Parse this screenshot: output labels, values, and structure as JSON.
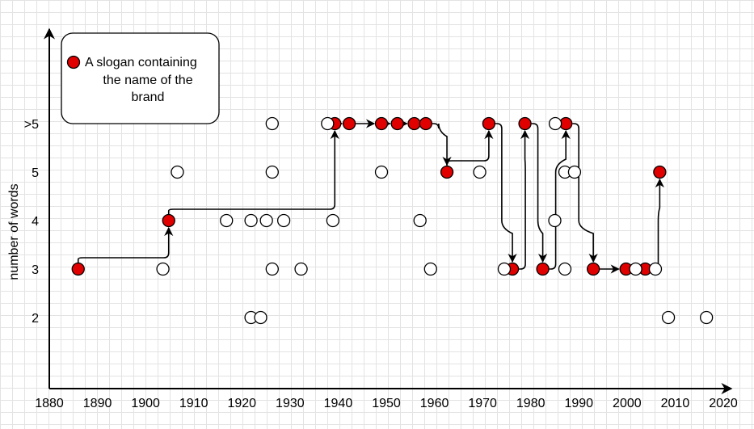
{
  "chart_data": {
    "type": "scatter",
    "ylabel": "number of words",
    "xlim": [
      1880,
      2020
    ],
    "x_ticks": [
      "1880",
      "1890",
      "1900",
      "1910",
      "1920",
      "1930",
      "1940",
      "1950",
      "1960",
      "1970",
      "1980",
      "1990",
      "2000",
      "2010",
      "2020"
    ],
    "y_categories": [
      "2",
      "3",
      "4",
      "5",
      ">5"
    ],
    "legend": {
      "lines": [
        "A slogan containing",
        "the name of the",
        "brand"
      ],
      "marker_color": "#e00000",
      "placement": "top-left"
    },
    "colors": {
      "highlight": "#e00000",
      "plain": "#ffffff",
      "outline": "#000000"
    },
    "series": [
      {
        "name": "A slogan containing the name of the brand",
        "points": [
          {
            "x": 1886,
            "y": "3"
          },
          {
            "x": 1904.8,
            "y": "4"
          },
          {
            "x": 1939.3,
            "y": ">5"
          },
          {
            "x": 1942.3,
            "y": ">5"
          },
          {
            "x": 1949,
            "y": ">5"
          },
          {
            "x": 1952.3,
            "y": ">5"
          },
          {
            "x": 1955.8,
            "y": ">5"
          },
          {
            "x": 1958.2,
            "y": ">5"
          },
          {
            "x": 1962.6,
            "y": "5"
          },
          {
            "x": 1971.3,
            "y": ">5"
          },
          {
            "x": 1976.2,
            "y": "3"
          },
          {
            "x": 1978.8,
            "y": ">5"
          },
          {
            "x": 1982.5,
            "y": "3"
          },
          {
            "x": 1987.3,
            "y": ">5"
          },
          {
            "x": 1993,
            "y": "3"
          },
          {
            "x": 1999.8,
            "y": "3"
          },
          {
            "x": 2003.8,
            "y": "3"
          },
          {
            "x": 2006.8,
            "y": "5"
          }
        ]
      },
      {
        "name": "",
        "points": [
          {
            "x": 1903.6,
            "y": "3"
          },
          {
            "x": 1906.6,
            "y": "5"
          },
          {
            "x": 1916.8,
            "y": "4"
          },
          {
            "x": 1921.9,
            "y": "4"
          },
          {
            "x": 1921.9,
            "y": "2"
          },
          {
            "x": 1923.9,
            "y": "2"
          },
          {
            "x": 1925.1,
            "y": "4"
          },
          {
            "x": 1926.3,
            "y": ">5"
          },
          {
            "x": 1926.3,
            "y": "5"
          },
          {
            "x": 1926.3,
            "y": "3"
          },
          {
            "x": 1928.7,
            "y": "4"
          },
          {
            "x": 1932.3,
            "y": "3"
          },
          {
            "x": 1937.8,
            "y": ">5"
          },
          {
            "x": 1938.9,
            "y": "4"
          },
          {
            "x": 1949,
            "y": "5"
          },
          {
            "x": 1957,
            "y": "4"
          },
          {
            "x": 1959.2,
            "y": "3"
          },
          {
            "x": 1969.4,
            "y": "5"
          },
          {
            "x": 1974.5,
            "y": "3"
          },
          {
            "x": 1985.1,
            "y": ">5"
          },
          {
            "x": 1985,
            "y": "4"
          },
          {
            "x": 1987.1,
            "y": "5"
          },
          {
            "x": 1987.1,
            "y": "3"
          },
          {
            "x": 1989.1,
            "y": "5"
          },
          {
            "x": 2001.8,
            "y": "3"
          },
          {
            "x": 2005.9,
            "y": "3"
          },
          {
            "x": 2008.6,
            "y": "2"
          },
          {
            "x": 2016.5,
            "y": "2"
          }
        ]
      }
    ],
    "connections": [
      [
        1886,
        "3",
        1904.8,
        "4"
      ],
      [
        1904.8,
        "4",
        1939.3,
        ">5"
      ],
      [
        1939.3,
        ">5",
        1942.3,
        ">5"
      ],
      [
        1942.3,
        ">5",
        1949,
        ">5"
      ],
      [
        1949,
        ">5",
        1952.3,
        ">5"
      ],
      [
        1952.3,
        ">5",
        1955.8,
        ">5"
      ],
      [
        1955.8,
        ">5",
        1958.2,
        ">5"
      ],
      [
        1958.2,
        ">5",
        1962.6,
        "5"
      ],
      [
        1962.6,
        "5",
        1971.3,
        ">5"
      ],
      [
        1971.3,
        ">5",
        1976.2,
        "3"
      ],
      [
        1976.2,
        "3",
        1978.8,
        ">5"
      ],
      [
        1978.8,
        ">5",
        1982.5,
        "3"
      ],
      [
        1982.5,
        "3",
        1987.3,
        ">5"
      ],
      [
        1987.3,
        ">5",
        1993,
        "3"
      ],
      [
        1993,
        "3",
        1999.8,
        "3"
      ],
      [
        1999.8,
        "3",
        2003.8,
        "3"
      ],
      [
        2003.8,
        "3",
        2006.8,
        "5"
      ]
    ]
  }
}
